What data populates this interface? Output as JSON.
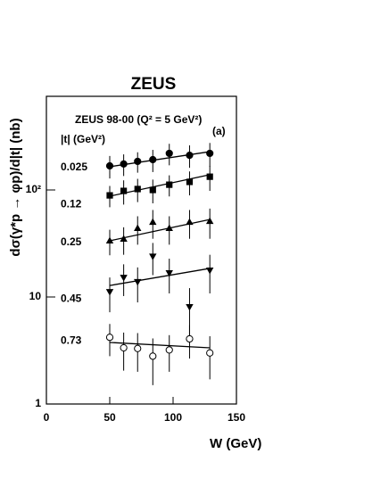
{
  "chart_data": {
    "type": "scatter",
    "title": "ZEUS",
    "subtitle": "ZEUS 98-00 (Q² = 5 GeV²)",
    "legend_title": "|t| (GeV²)",
    "annotation": "(a)",
    "xlabel": "W (GeV)",
    "ylabel": "dσ(γ*p → φp)/d|t| (nb)",
    "xlim": [
      0,
      150
    ],
    "xticks": [
      0,
      50,
      100,
      150
    ],
    "ylim": [
      1,
      750
    ],
    "yticks": [
      1,
      10,
      {
        "value": 100,
        "label": "10²"
      }
    ],
    "log_y": true,
    "color": "#000000",
    "x": [
      50,
      61,
      72,
      84,
      97,
      113,
      129
    ],
    "fit_x": [
      50,
      129
    ],
    "series": [
      {
        "name": "0.025",
        "marker": "circle",
        "values": [
          168,
          175,
          185,
          192,
          220,
          211,
          220
        ],
        "errors": [
          40,
          40,
          40,
          45,
          50,
          50,
          55
        ],
        "fit": [
          165,
          228
        ]
      },
      {
        "name": "0.12",
        "marker": "square",
        "values": [
          89,
          98,
          102,
          100,
          112,
          119,
          133
        ],
        "errors": [
          20,
          25,
          25,
          25,
          25,
          30,
          35
        ],
        "fit": [
          87.5,
          139
        ]
      },
      {
        "name": "0.25",
        "marker": "triangle-up",
        "values": [
          33.5,
          34.8,
          43.8,
          50,
          43.8,
          50,
          51
        ],
        "errors": [
          9,
          10,
          13,
          15,
          13,
          15,
          16
        ],
        "fit": [
          33.5,
          53
        ]
      },
      {
        "name": "0.45",
        "marker": "triangle-down",
        "values": [
          11.2,
          15.2,
          13.9,
          24,
          16.8,
          8.1,
          17.8
        ],
        "errors": [
          4,
          5,
          5,
          8,
          6,
          4,
          7
        ],
        "fit": [
          12.8,
          18.5
        ]
      },
      {
        "name": "0.73",
        "marker": "circle-open",
        "values": [
          4.2,
          3.35,
          3.3,
          2.8,
          3.2,
          4.06,
          3.0
        ],
        "errors": [
          1.4,
          1.3,
          1.3,
          1.3,
          1.2,
          1.4,
          1.3
        ],
        "fit": [
          3.76,
          3.35
        ]
      }
    ]
  }
}
